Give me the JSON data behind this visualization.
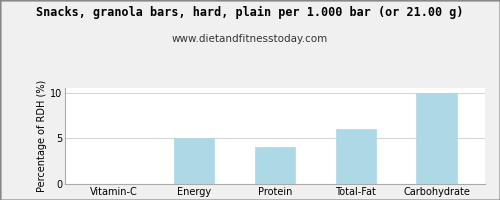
{
  "title": "Snacks, granola bars, hard, plain per 1.000 bar (or 21.00 g)",
  "subtitle": "www.dietandfitnesstoday.com",
  "categories": [
    "Vitamin-C",
    "Energy",
    "Protein",
    "Total-Fat",
    "Carbohydrate"
  ],
  "values": [
    0,
    5,
    4,
    6,
    10
  ],
  "bar_color": "#add8e6",
  "bar_edge_color": "#add8e6",
  "ylabel": "Percentage of RDH (%)",
  "ylim": [
    0,
    10.5
  ],
  "yticks": [
    0,
    5,
    10
  ],
  "background_color": "#f0f0f0",
  "plot_bg_color": "#ffffff",
  "title_fontsize": 8.5,
  "subtitle_fontsize": 7.5,
  "ylabel_fontsize": 7,
  "tick_fontsize": 7,
  "grid_color": "#cccccc",
  "border_color": "#aaaaaa"
}
